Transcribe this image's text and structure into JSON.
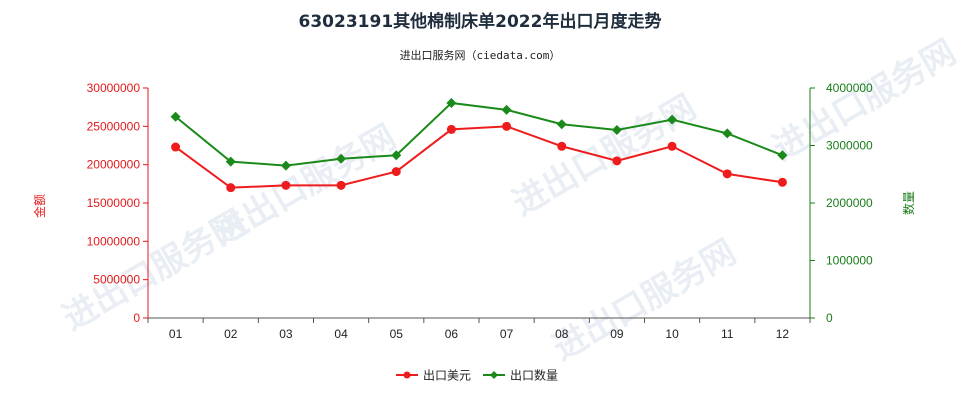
{
  "chart_data": {
    "type": "line",
    "title": "63023191其他棉制床单2022年出口月度走势",
    "subtitle": "进出口服务网（ciedata.com）",
    "watermark": "进出口服务网",
    "categories": [
      "01",
      "02",
      "03",
      "04",
      "05",
      "06",
      "07",
      "08",
      "09",
      "10",
      "11",
      "12"
    ],
    "left_axis": {
      "label": "金额",
      "ylim": [
        0,
        30000000
      ],
      "ticks": [
        "0",
        "5000000",
        "10000000",
        "15000000",
        "20000000",
        "25000000",
        "30000000"
      ],
      "color": "#e31a1c"
    },
    "right_axis": {
      "label": "数量",
      "ylim": [
        0,
        4000000
      ],
      "ticks": [
        "0",
        "1000000",
        "2000000",
        "3000000",
        "4000000"
      ],
      "color": "#1a7d1a"
    },
    "series": [
      {
        "name": "出口美元",
        "axis": "left",
        "color": "#ee1c1c",
        "marker": "circle",
        "values": [
          22300000,
          17000000,
          17300000,
          17300000,
          19100000,
          24600000,
          25000000,
          22400000,
          20500000,
          22400000,
          18800000,
          17700000
        ]
      },
      {
        "name": "出口数量",
        "axis": "right",
        "color": "#1a8a1a",
        "marker": "diamond",
        "values": [
          3500000,
          2720000,
          2650000,
          2770000,
          2830000,
          3740000,
          3620000,
          3370000,
          3270000,
          3450000,
          3210000,
          2830000
        ]
      }
    ],
    "grid": false,
    "legend_position": "bottom-center"
  }
}
